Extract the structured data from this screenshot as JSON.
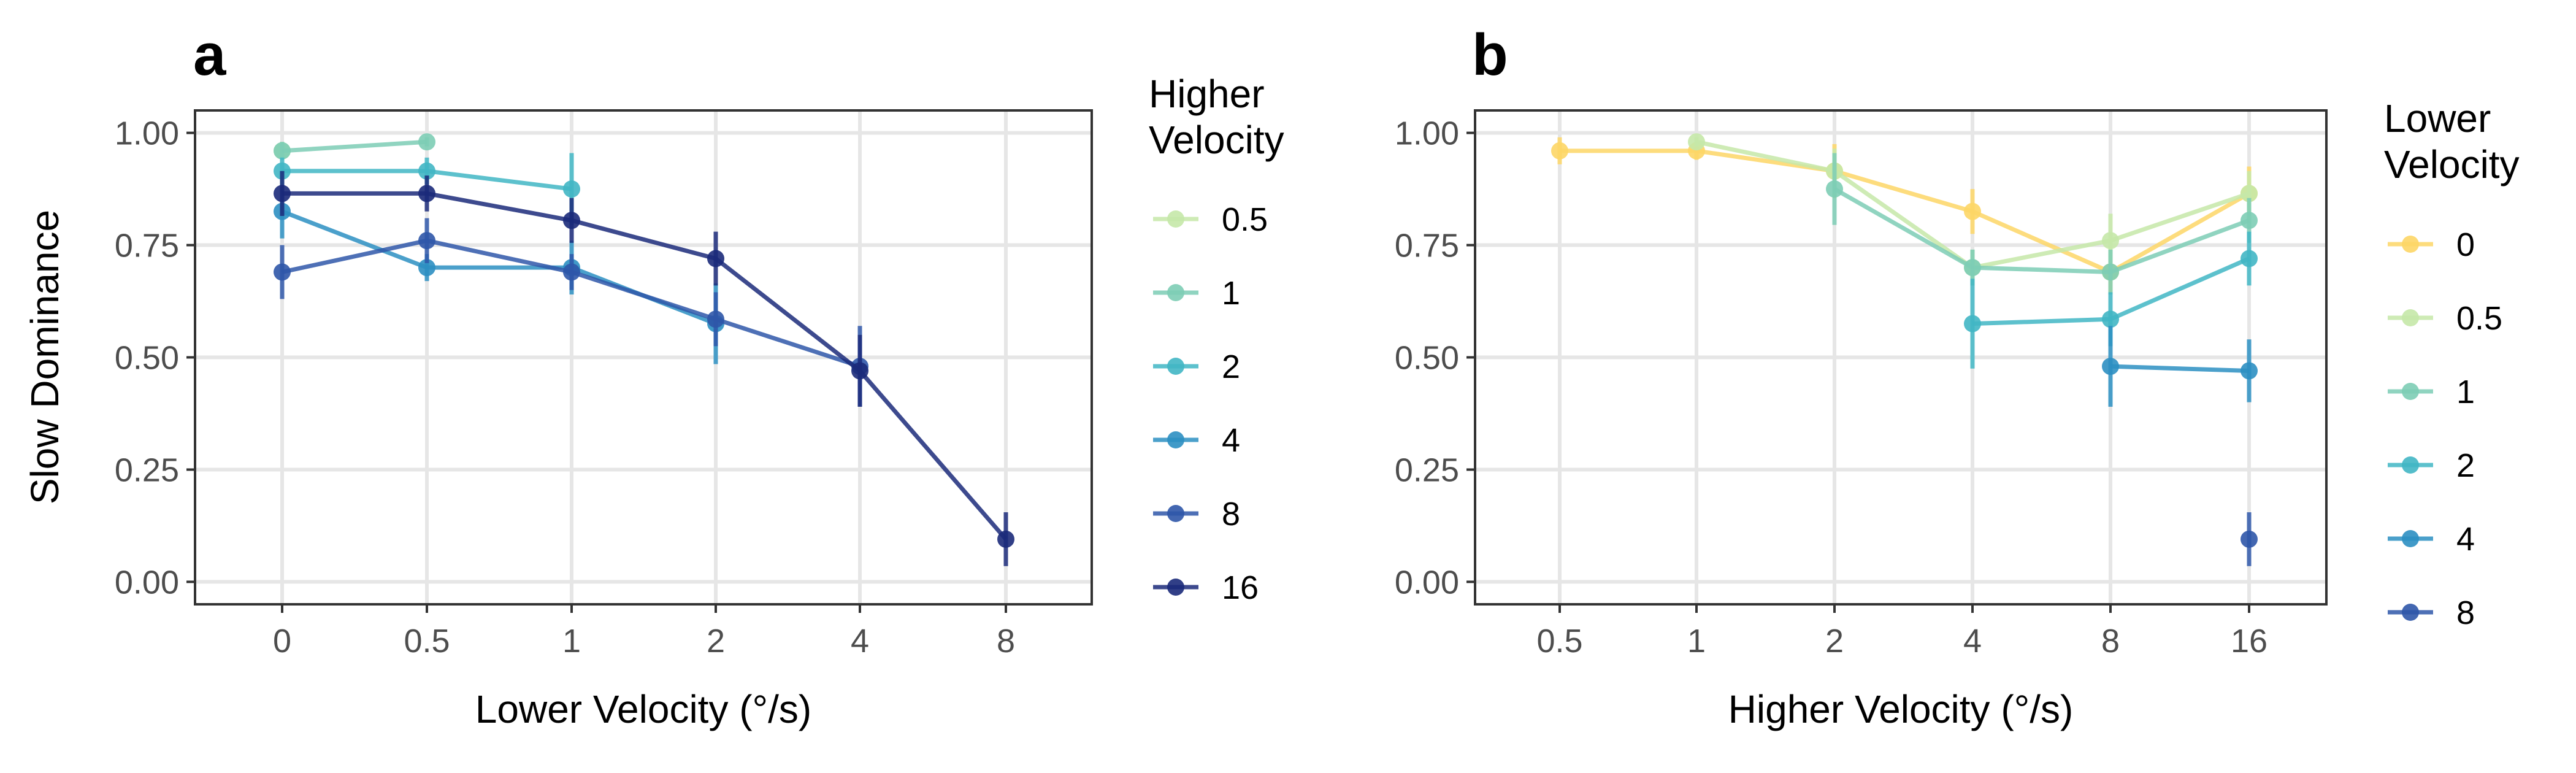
{
  "colors": {
    "0": "#FDD666",
    "0.5": "#C5E8A8",
    "1": "#7DCDB5",
    "2": "#41B6C4",
    "4": "#2C8FC2",
    "8": "#2F57A9",
    "16": "#1B2A7A"
  },
  "chart_data": [
    {
      "type": "line",
      "panel_label": "a",
      "title": "",
      "xlabel": "Lower Velocity (°/s)",
      "ylabel": "Slow Dominance",
      "categories": [
        "0",
        "0.5",
        "1",
        "2",
        "4",
        "8"
      ],
      "ylim": [
        -0.05,
        1.05
      ],
      "yticks": [
        "0.00",
        "0.25",
        "0.50",
        "0.75",
        "1.00"
      ],
      "grid": true,
      "legend_position": "right",
      "legend_title": [
        "Higher",
        "Velocity"
      ],
      "series": [
        {
          "name": "0.5",
          "color_key": "0.5",
          "points": [
            {
              "x": "0",
              "y": 0.96,
              "err": 0.02
            }
          ]
        },
        {
          "name": "1",
          "color_key": "1",
          "points": [
            {
              "x": "0",
              "y": 0.96,
              "err": 0.02
            },
            {
              "x": "0.5",
              "y": 0.98,
              "err": 0.01
            }
          ]
        },
        {
          "name": "2",
          "color_key": "2",
          "points": [
            {
              "x": "0",
              "y": 0.915,
              "err": 0.03
            },
            {
              "x": "0.5",
              "y": 0.915,
              "err": 0.03
            },
            {
              "x": "1",
              "y": 0.875,
              "err": 0.08
            }
          ]
        },
        {
          "name": "4",
          "color_key": "4",
          "points": [
            {
              "x": "0",
              "y": 0.825,
              "err": 0.06
            },
            {
              "x": "0.5",
              "y": 0.7,
              "err": 0.03
            },
            {
              "x": "1",
              "y": 0.7,
              "err": 0.06
            },
            {
              "x": "2",
              "y": 0.575,
              "err": 0.09
            }
          ]
        },
        {
          "name": "8",
          "color_key": "8",
          "points": [
            {
              "x": "0",
              "y": 0.69,
              "err": 0.06
            },
            {
              "x": "0.5",
              "y": 0.76,
              "err": 0.05
            },
            {
              "x": "1",
              "y": 0.69,
              "err": 0.04
            },
            {
              "x": "2",
              "y": 0.585,
              "err": 0.06
            },
            {
              "x": "4",
              "y": 0.48,
              "err": 0.09
            }
          ]
        },
        {
          "name": "16",
          "color_key": "16",
          "points": [
            {
              "x": "0",
              "y": 0.865,
              "err": 0.05
            },
            {
              "x": "0.5",
              "y": 0.865,
              "err": 0.04
            },
            {
              "x": "1",
              "y": 0.805,
              "err": 0.05
            },
            {
              "x": "2",
              "y": 0.72,
              "err": 0.06
            },
            {
              "x": "4",
              "y": 0.47,
              "err": 0.08
            },
            {
              "x": "8",
              "y": 0.095,
              "err": 0.06
            }
          ]
        }
      ]
    },
    {
      "type": "line",
      "panel_label": "b",
      "title": "",
      "xlabel": "Higher Velocity (°/s)",
      "ylabel": "",
      "categories": [
        "0.5",
        "1",
        "2",
        "4",
        "8",
        "16"
      ],
      "ylim": [
        -0.05,
        1.05
      ],
      "yticks": [
        "0.00",
        "0.25",
        "0.50",
        "0.75",
        "1.00"
      ],
      "grid": true,
      "legend_position": "right",
      "legend_title": [
        "Lower",
        "Velocity"
      ],
      "series": [
        {
          "name": "0",
          "color_key": "0",
          "points": [
            {
              "x": "0.5",
              "y": 0.96,
              "err": 0.03
            },
            {
              "x": "1",
              "y": 0.96,
              "err": 0.02
            },
            {
              "x": "2",
              "y": 0.915,
              "err": 0.06
            },
            {
              "x": "4",
              "y": 0.825,
              "err": 0.05
            },
            {
              "x": "8",
              "y": 0.69,
              "err": 0.05
            },
            {
              "x": "16",
              "y": 0.865,
              "err": 0.06
            }
          ]
        },
        {
          "name": "0.5",
          "color_key": "0.5",
          "points": [
            {
              "x": "1",
              "y": 0.98,
              "err": 0.01
            },
            {
              "x": "2",
              "y": 0.915,
              "err": 0.05
            },
            {
              "x": "4",
              "y": 0.7,
              "err": 0.04
            },
            {
              "x": "8",
              "y": 0.76,
              "err": 0.06
            },
            {
              "x": "16",
              "y": 0.865,
              "err": 0.05
            }
          ]
        },
        {
          "name": "1",
          "color_key": "1",
          "points": [
            {
              "x": "2",
              "y": 0.875,
              "err": 0.08
            },
            {
              "x": "4",
              "y": 0.7,
              "err": 0.04
            },
            {
              "x": "8",
              "y": 0.69,
              "err": 0.05
            },
            {
              "x": "16",
              "y": 0.805,
              "err": 0.05
            }
          ]
        },
        {
          "name": "2",
          "color_key": "2",
          "points": [
            {
              "x": "4",
              "y": 0.575,
              "err": 0.1
            },
            {
              "x": "8",
              "y": 0.585,
              "err": 0.06
            },
            {
              "x": "16",
              "y": 0.72,
              "err": 0.06
            }
          ]
        },
        {
          "name": "4",
          "color_key": "4",
          "points": [
            {
              "x": "8",
              "y": 0.48,
              "err": 0.09
            },
            {
              "x": "16",
              "y": 0.47,
              "err": 0.07
            }
          ]
        },
        {
          "name": "8",
          "color_key": "8",
          "points": [
            {
              "x": "16",
              "y": 0.095,
              "err": 0.06
            }
          ]
        }
      ]
    }
  ]
}
